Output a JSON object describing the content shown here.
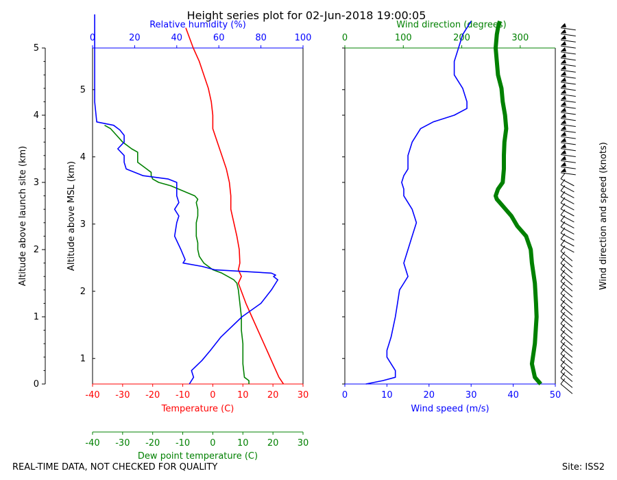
{
  "chart_data": {
    "type": "line",
    "title": "Height series plot for 02-Jun-2018 19:00:05",
    "footer_left": "REAL-TIME DATA, NOT CHECKED FOR QUALITY",
    "footer_right": "Site: ISS2",
    "left_panel": {
      "ylabel_outer": "Altitude above launch site (km)",
      "ylabel_inner": "Altitude above MSL (km)",
      "xlabel_temperature": "Temperature (C)",
      "xlabel_rh": "Relative humidity (%)",
      "xlabel_dewpoint": "Dew point temperature (C)",
      "temp_range": [
        -40,
        30
      ],
      "rh_range": [
        0,
        100
      ],
      "alt_range": [
        0,
        5
      ],
      "temp_ticks": [
        -40,
        -30,
        -20,
        -10,
        0,
        10,
        20,
        30
      ],
      "rh_ticks": [
        0,
        20,
        40,
        60,
        80,
        100
      ],
      "outer_alt_ticks": [
        0,
        1,
        2,
        3,
        4,
        5
      ],
      "inner_alt_ticks": [
        1,
        2,
        3,
        4,
        5
      ],
      "inner_alt_offset": 0.62,
      "series": [
        {
          "name": "Temperature",
          "color": "#ff0000",
          "axis": "temp",
          "alt": [
            0.0,
            0.1,
            0.3,
            0.5,
            0.7,
            1.0,
            1.2,
            1.5,
            1.6,
            1.7,
            1.8,
            2.0,
            2.2,
            2.4,
            2.6,
            2.8,
            3.0,
            3.2,
            3.4,
            3.6,
            3.8,
            4.0,
            4.2,
            4.4,
            4.6,
            4.8,
            5.0,
            5.3
          ],
          "values": [
            23.5,
            22,
            20,
            18,
            16,
            13,
            11,
            8.5,
            9.5,
            8.5,
            9,
            8.8,
            8,
            7,
            6,
            6,
            5.5,
            4.5,
            3,
            1.5,
            0,
            0,
            -0.5,
            -1.5,
            -3,
            -4.5,
            -6.5,
            -9
          ]
        },
        {
          "name": "Dew point temperature",
          "color": "#008000",
          "axis": "temp",
          "alt": [
            0.0,
            0.05,
            0.1,
            0.3,
            0.6,
            0.8,
            1.0,
            1.2,
            1.4,
            1.5,
            1.55,
            1.6,
            1.65,
            1.7,
            1.8,
            1.9,
            2.0,
            2.1,
            2.2,
            2.4,
            2.5,
            2.6,
            2.7,
            2.75,
            2.8,
            2.95,
            3.0,
            3.05,
            3.1,
            3.15,
            3.2,
            3.3,
            3.35,
            3.4,
            3.45,
            3.5,
            3.6,
            3.7,
            3.8,
            3.85
          ],
          "values": [
            12,
            12,
            10.5,
            10,
            10,
            9.5,
            9.5,
            9,
            8.5,
            8,
            7,
            5,
            3,
            0,
            -3,
            -4.5,
            -5,
            -5,
            -5.5,
            -5.5,
            -5,
            -5,
            -5.5,
            -5,
            -6,
            -14,
            -18,
            -20,
            -20.5,
            -20.5,
            -22,
            -25,
            -25,
            -25,
            -25,
            -27,
            -30,
            -32,
            -34,
            -36
          ]
        }
      ],
      "rh_series": {
        "name": "Relative humidity",
        "color": "#0000ff",
        "alt": [
          0.0,
          0.1,
          0.2,
          0.35,
          0.5,
          0.7,
          1.0,
          1.2,
          1.4,
          1.5,
          1.55,
          1.6,
          1.62,
          1.65,
          1.7,
          1.75,
          1.8,
          1.85,
          2.0,
          2.2,
          2.4,
          2.5,
          2.6,
          2.7,
          2.8,
          2.9,
          2.95,
          3.0,
          3.05,
          3.1,
          3.2,
          3.3,
          3.4,
          3.5,
          3.6,
          3.7,
          3.78,
          3.85,
          3.9,
          4.2,
          4.8,
          5.5
        ],
        "values": [
          46,
          48,
          47,
          52,
          56,
          61,
          71,
          80,
          85,
          87,
          88,
          86,
          87,
          85,
          58,
          52,
          43,
          44,
          42,
          39,
          40,
          41,
          39,
          41,
          40,
          40,
          40,
          40,
          36,
          24,
          16,
          15,
          15,
          12,
          15,
          15,
          13,
          10,
          2,
          1,
          1,
          1
        ]
      }
    },
    "right_panel": {
      "xlabel_speed": "Wind speed (m/s)",
      "xlabel_dir": "Wind direction (degrees)",
      "barb_label": "Wind direction and speed (knots)",
      "speed_range": [
        0,
        50
      ],
      "dir_range": [
        0,
        360
      ],
      "speed_ticks": [
        0,
        10,
        20,
        30,
        40,
        50
      ],
      "dir_ticks": [
        0,
        100,
        200,
        300
      ],
      "series": [
        {
          "name": "Wind speed",
          "color": "#0000ff",
          "axis": "speed",
          "alt": [
            0.0,
            0.05,
            0.1,
            0.2,
            0.3,
            0.4,
            0.5,
            0.7,
            1.0,
            1.2,
            1.4,
            1.5,
            1.6,
            1.7,
            1.8,
            2.0,
            2.2,
            2.4,
            2.6,
            2.8,
            2.9,
            3.0,
            3.1,
            3.2,
            3.4,
            3.6,
            3.8,
            3.9,
            4.0,
            4.1,
            4.2,
            4.4,
            4.6,
            4.8,
            5.0,
            5.2,
            5.4
          ],
          "values": [
            5,
            9,
            12,
            12,
            11,
            10,
            10,
            11,
            12,
            12.5,
            13,
            14,
            15,
            14.5,
            14,
            15,
            16,
            17,
            16,
            14,
            14,
            13.5,
            14,
            15,
            15,
            16,
            18,
            21,
            26,
            29,
            29,
            28,
            26,
            26,
            27,
            28,
            30
          ]
        },
        {
          "name": "Wind direction",
          "color": "#008000",
          "axis": "dir",
          "alt": [
            0.0,
            0.1,
            0.3,
            0.6,
            1.0,
            1.2,
            1.5,
            1.8,
            2.0,
            2.2,
            2.35,
            2.5,
            2.6,
            2.7,
            2.75,
            2.8,
            2.9,
            3.0,
            3.2,
            3.4,
            3.6,
            3.8,
            4.0,
            4.2,
            4.4,
            4.6,
            4.8,
            5.0,
            5.2,
            5.3,
            5.4
          ],
          "values": [
            335,
            325,
            320,
            325,
            328,
            327,
            325,
            320,
            318,
            310,
            295,
            285,
            275,
            265,
            260,
            258,
            262,
            270,
            272,
            272,
            273,
            276,
            274,
            270,
            268,
            262,
            260,
            258,
            260,
            262,
            265
          ]
        }
      ],
      "barbs_alt_start": 0.0,
      "barbs_alt_end": 5.3,
      "barbs_count": 60
    }
  }
}
